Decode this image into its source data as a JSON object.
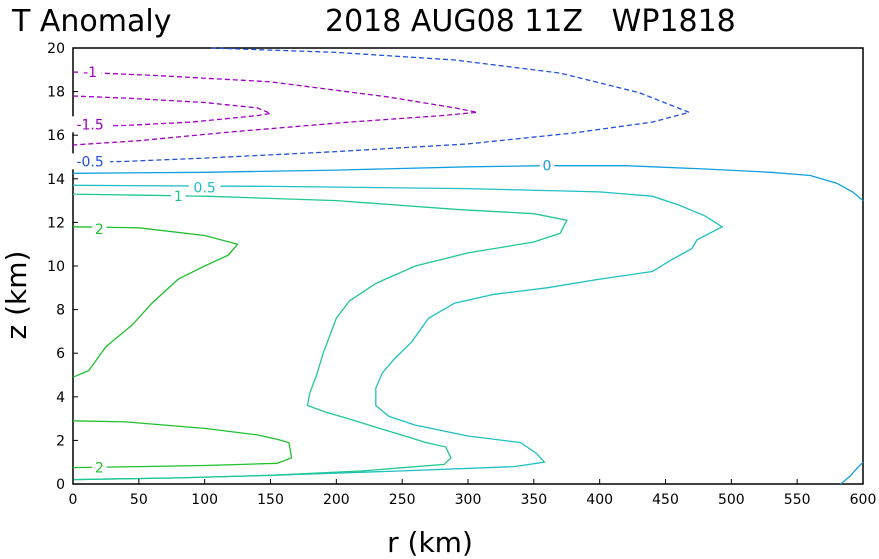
{
  "title": {
    "left": "T Anomaly",
    "right": "2018 AUG08 11Z   WP1818"
  },
  "chart_data": {
    "type": "contour",
    "xlabel": "r (km)",
    "ylabel": "z (km)",
    "xlim": [
      0,
      600
    ],
    "ylim": [
      0,
      20
    ],
    "xticks": [
      0,
      50,
      100,
      150,
      200,
      250,
      300,
      350,
      400,
      450,
      500,
      550,
      600
    ],
    "yticks": [
      0,
      2,
      4,
      6,
      8,
      10,
      12,
      14,
      16,
      18,
      20
    ],
    "grid": false,
    "contours": [
      {
        "level": -1.5,
        "label": "-1.5",
        "color": "#a000c0",
        "dashed": true,
        "label_at": [
          13,
          16.5
        ],
        "points": [
          [
            0,
            17.8
          ],
          [
            40,
            17.7
          ],
          [
            100,
            17.5
          ],
          [
            140,
            17.25
          ],
          [
            150,
            17.0
          ],
          [
            140,
            16.9
          ],
          [
            90,
            16.6
          ],
          [
            40,
            16.45
          ],
          [
            0,
            16.4
          ]
        ]
      },
      {
        "level": -1,
        "label": "-1",
        "color": "#a000c0",
        "dashed": true,
        "label_at": [
          13,
          18.9
        ],
        "points": [
          [
            0,
            18.9
          ],
          [
            60,
            18.75
          ],
          [
            150,
            18.45
          ],
          [
            240,
            17.75
          ],
          [
            290,
            17.25
          ],
          [
            307,
            17.05
          ],
          [
            280,
            16.9
          ],
          [
            210,
            16.6
          ],
          [
            120,
            16.15
          ],
          [
            50,
            15.75
          ],
          [
            0,
            15.55
          ]
        ]
      },
      {
        "level": -0.5,
        "label": "-0.5",
        "color": "#2050e0",
        "dashed": true,
        "label_at": [
          13,
          14.8
        ],
        "points": [
          [
            105,
            20
          ],
          [
            200,
            19.8
          ],
          [
            290,
            19.45
          ],
          [
            370,
            18.85
          ],
          [
            430,
            17.95
          ],
          [
            468,
            17.05
          ],
          [
            440,
            16.6
          ],
          [
            380,
            16.1
          ],
          [
            300,
            15.6
          ],
          [
            200,
            15.25
          ],
          [
            100,
            14.95
          ],
          [
            40,
            14.8
          ],
          [
            0,
            14.75
          ]
        ]
      },
      {
        "level": 0,
        "label": "0",
        "color": "#10a0e0",
        "dashed": false,
        "label_at": [
          360,
          14.6
        ],
        "points": [
          [
            0,
            14.25
          ],
          [
            100,
            14.3
          ],
          [
            200,
            14.4
          ],
          [
            300,
            14.55
          ],
          [
            360,
            14.6
          ],
          [
            420,
            14.6
          ],
          [
            480,
            14.45
          ],
          [
            530,
            14.3
          ],
          [
            560,
            14.15
          ],
          [
            580,
            13.8
          ],
          [
            592,
            13.4
          ],
          [
            600,
            13.0
          ]
        ]
      },
      {
        "level": 0,
        "label": "",
        "color": "#10a0e0",
        "dashed": false,
        "label_at": null,
        "points": [
          [
            583,
            0
          ],
          [
            590,
            0.35
          ],
          [
            596,
            0.75
          ],
          [
            600,
            1.0
          ]
        ]
      },
      {
        "level": 0.5,
        "label": "0.5",
        "color": "#20c0c0",
        "dashed": false,
        "label_at": [
          100,
          13.6
        ],
        "points": [
          [
            0,
            13.7
          ],
          [
            150,
            13.65
          ],
          [
            300,
            13.55
          ],
          [
            400,
            13.4
          ],
          [
            440,
            13.2
          ],
          [
            460,
            12.8
          ],
          [
            480,
            12.3
          ],
          [
            493,
            11.8
          ],
          [
            474,
            11.2
          ],
          [
            470,
            10.8
          ],
          [
            455,
            10.3
          ],
          [
            440,
            9.75
          ],
          [
            400,
            9.4
          ],
          [
            360,
            9.0
          ],
          [
            320,
            8.7
          ],
          [
            290,
            8.3
          ],
          [
            270,
            7.6
          ],
          [
            257,
            6.5
          ],
          [
            245,
            5.8
          ],
          [
            235,
            5.1
          ],
          [
            230,
            4.4
          ],
          [
            230,
            3.6
          ],
          [
            240,
            3.1
          ],
          [
            260,
            2.7
          ],
          [
            300,
            2.2
          ],
          [
            340,
            1.9
          ],
          [
            352,
            1.4
          ],
          [
            358,
            1.0
          ],
          [
            335,
            0.8
          ],
          [
            250,
            0.6
          ],
          [
            150,
            0.4
          ],
          [
            80,
            0.28
          ],
          [
            0,
            0.2
          ]
        ]
      },
      {
        "level": 1,
        "label": "1",
        "color": "#20c890",
        "dashed": false,
        "label_at": [
          80,
          13.2
        ],
        "points": [
          [
            0,
            13.3
          ],
          [
            100,
            13.2
          ],
          [
            200,
            13.0
          ],
          [
            290,
            12.6
          ],
          [
            350,
            12.4
          ],
          [
            375,
            12.1
          ],
          [
            370,
            11.5
          ],
          [
            350,
            11.1
          ],
          [
            300,
            10.6
          ],
          [
            260,
            10.0
          ],
          [
            230,
            9.2
          ],
          [
            210,
            8.4
          ],
          [
            200,
            7.6
          ],
          [
            195,
            6.8
          ],
          [
            190,
            6.0
          ],
          [
            185,
            5.0
          ],
          [
            180,
            4.2
          ],
          [
            178,
            3.6
          ],
          [
            192,
            3.3
          ],
          [
            212,
            2.95
          ],
          [
            230,
            2.6
          ],
          [
            255,
            2.15
          ],
          [
            268,
            1.9
          ],
          [
            283,
            1.7
          ],
          [
            287,
            1.2
          ],
          [
            282,
            0.9
          ],
          [
            220,
            0.6
          ],
          [
            150,
            0.4
          ],
          [
            80,
            0.28
          ],
          [
            0,
            0.2
          ]
        ]
      },
      {
        "level": 2,
        "label": "2",
        "color": "#20c030",
        "dashed": false,
        "label_at": [
          20,
          11.7
        ],
        "points": [
          [
            0,
            11.8
          ],
          [
            50,
            11.75
          ],
          [
            100,
            11.4
          ],
          [
            125,
            11.0
          ],
          [
            118,
            10.5
          ],
          [
            100,
            10.0
          ],
          [
            80,
            9.4
          ],
          [
            60,
            8.3
          ],
          [
            45,
            7.3
          ],
          [
            25,
            6.3
          ],
          [
            12,
            5.2
          ],
          [
            0,
            4.9
          ]
        ]
      },
      {
        "level": 2,
        "label": "2",
        "color": "#20c030",
        "dashed": false,
        "label_at": [
          20,
          0.75
        ],
        "points": [
          [
            0,
            2.9
          ],
          [
            40,
            2.85
          ],
          [
            100,
            2.55
          ],
          [
            140,
            2.25
          ],
          [
            155,
            2.05
          ],
          [
            164,
            1.9
          ],
          [
            166,
            1.2
          ],
          [
            155,
            0.95
          ],
          [
            100,
            0.85
          ],
          [
            50,
            0.8
          ],
          [
            0,
            0.75
          ]
        ]
      }
    ]
  }
}
